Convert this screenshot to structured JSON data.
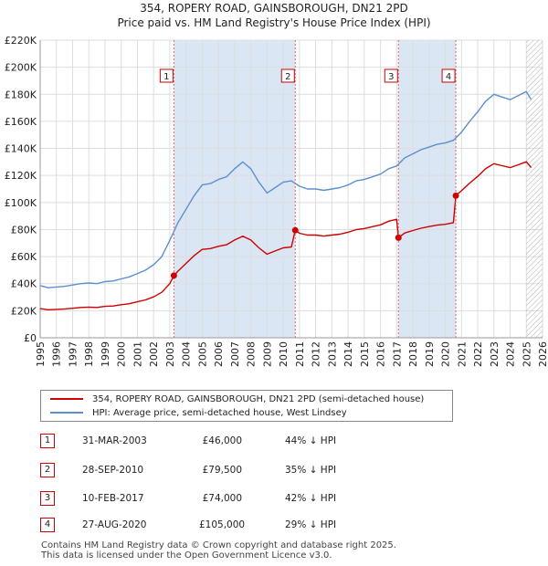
{
  "title_line1": "354, ROPERY ROAD, GAINSBOROUGH, DN21 2PD",
  "title_line2": "Price paid vs. HM Land Registry's House Price Index (HPI)",
  "colors": {
    "price": "#cc0000",
    "hpi": "#5b8fd0",
    "band": "#dbe6f4",
    "marker_line": "#e06666"
  },
  "chart_data": {
    "type": "line",
    "title": "354, ROPERY ROAD, GAINSBOROUGH, DN21 2PD — Price paid vs. HM Land Registry's House Price Index (HPI)",
    "xlabel": "",
    "ylabel": "",
    "xlim": [
      1995,
      2026
    ],
    "ylim": [
      0,
      220000
    ],
    "x_ticks": [
      1995,
      1996,
      1997,
      1998,
      1999,
      2000,
      2001,
      2002,
      2003,
      2004,
      2005,
      2006,
      2007,
      2008,
      2009,
      2010,
      2011,
      2012,
      2013,
      2014,
      2015,
      2016,
      2017,
      2018,
      2019,
      2020,
      2021,
      2022,
      2023,
      2024,
      2025,
      2026
    ],
    "y_ticks": [
      {
        "value": 0,
        "label": "£0"
      },
      {
        "value": 20000,
        "label": "£20K"
      },
      {
        "value": 40000,
        "label": "£40K"
      },
      {
        "value": 60000,
        "label": "£60K"
      },
      {
        "value": 80000,
        "label": "£80K"
      },
      {
        "value": 100000,
        "label": "£100K"
      },
      {
        "value": 120000,
        "label": "£120K"
      },
      {
        "value": 140000,
        "label": "£140K"
      },
      {
        "value": 160000,
        "label": "£160K"
      },
      {
        "value": 180000,
        "label": "£180K"
      },
      {
        "value": 200000,
        "label": "£200K"
      },
      {
        "value": 220000,
        "label": "£220K"
      }
    ],
    "grid": true,
    "series": [
      {
        "name": "HPI: Average price, semi-detached house, West Lindsey",
        "color": "#5b8fd0",
        "points": [
          [
            1995.0,
            38500
          ],
          [
            1995.5,
            37000
          ],
          [
            1996.0,
            37500
          ],
          [
            1996.5,
            38000
          ],
          [
            1997.0,
            39000
          ],
          [
            1997.5,
            40000
          ],
          [
            1998.0,
            40500
          ],
          [
            1998.5,
            40000
          ],
          [
            1999.0,
            41500
          ],
          [
            1999.5,
            42000
          ],
          [
            2000.0,
            43500
          ],
          [
            2000.5,
            45000
          ],
          [
            2001.0,
            47500
          ],
          [
            2001.5,
            50000
          ],
          [
            2002.0,
            54000
          ],
          [
            2002.5,
            60000
          ],
          [
            2003.0,
            72000
          ],
          [
            2003.5,
            85000
          ],
          [
            2004.0,
            95000
          ],
          [
            2004.5,
            105000
          ],
          [
            2005.0,
            113000
          ],
          [
            2005.5,
            114000
          ],
          [
            2006.0,
            117000
          ],
          [
            2006.5,
            119000
          ],
          [
            2007.0,
            125000
          ],
          [
            2007.5,
            130000
          ],
          [
            2008.0,
            125000
          ],
          [
            2008.5,
            115000
          ],
          [
            2009.0,
            107000
          ],
          [
            2009.5,
            111000
          ],
          [
            2010.0,
            115000
          ],
          [
            2010.5,
            116000
          ],
          [
            2011.0,
            112000
          ],
          [
            2011.5,
            110000
          ],
          [
            2012.0,
            110000
          ],
          [
            2012.5,
            109000
          ],
          [
            2013.0,
            110000
          ],
          [
            2013.5,
            111000
          ],
          [
            2014.0,
            113000
          ],
          [
            2014.5,
            116000
          ],
          [
            2015.0,
            117000
          ],
          [
            2015.5,
            119000
          ],
          [
            2016.0,
            121000
          ],
          [
            2016.5,
            125000
          ],
          [
            2017.0,
            127000
          ],
          [
            2017.5,
            133000
          ],
          [
            2018.0,
            136000
          ],
          [
            2018.5,
            139000
          ],
          [
            2019.0,
            141000
          ],
          [
            2019.5,
            143000
          ],
          [
            2020.0,
            144000
          ],
          [
            2020.5,
            146000
          ],
          [
            2021.0,
            152000
          ],
          [
            2021.5,
            160000
          ],
          [
            2022.0,
            167000
          ],
          [
            2022.5,
            175000
          ],
          [
            2023.0,
            180000
          ],
          [
            2023.5,
            178000
          ],
          [
            2024.0,
            176000
          ],
          [
            2024.5,
            179000
          ],
          [
            2025.0,
            182000
          ],
          [
            2025.3,
            176000
          ]
        ]
      },
      {
        "name": "354, ROPERY ROAD, GAINSBOROUGH, DN21 2PD (semi-detached house)",
        "color": "#cc0000",
        "points": [
          [
            1995.0,
            21500
          ],
          [
            1995.5,
            20700
          ],
          [
            1996.0,
            21000
          ],
          [
            1996.5,
            21300
          ],
          [
            1997.0,
            21800
          ],
          [
            1997.5,
            22400
          ],
          [
            1998.0,
            22700
          ],
          [
            1998.5,
            22400
          ],
          [
            1999.0,
            23200
          ],
          [
            1999.5,
            23500
          ],
          [
            2000.0,
            24400
          ],
          [
            2000.5,
            25200
          ],
          [
            2001.0,
            26600
          ],
          [
            2001.5,
            28000
          ],
          [
            2002.0,
            30200
          ],
          [
            2002.5,
            33600
          ],
          [
            2003.0,
            40000
          ],
          [
            2003.25,
            46000
          ],
          [
            2003.5,
            49200
          ],
          [
            2004.0,
            55000
          ],
          [
            2004.5,
            60700
          ],
          [
            2005.0,
            65300
          ],
          [
            2005.5,
            65900
          ],
          [
            2006.0,
            67600
          ],
          [
            2006.5,
            68800
          ],
          [
            2007.0,
            72300
          ],
          [
            2007.5,
            75100
          ],
          [
            2008.0,
            72300
          ],
          [
            2008.5,
            66500
          ],
          [
            2009.0,
            61800
          ],
          [
            2009.5,
            64200
          ],
          [
            2010.0,
            66500
          ],
          [
            2010.5,
            67100
          ],
          [
            2010.74,
            79500
          ],
          [
            2011.0,
            77300
          ],
          [
            2011.5,
            75900
          ],
          [
            2012.0,
            75900
          ],
          [
            2012.5,
            75200
          ],
          [
            2013.0,
            75900
          ],
          [
            2013.5,
            76600
          ],
          [
            2014.0,
            78000
          ],
          [
            2014.5,
            80000
          ],
          [
            2015.0,
            80700
          ],
          [
            2015.5,
            82100
          ],
          [
            2016.0,
            83500
          ],
          [
            2016.5,
            86200
          ],
          [
            2017.0,
            87600
          ],
          [
            2017.11,
            74000
          ],
          [
            2017.5,
            77500
          ],
          [
            2018.0,
            79300
          ],
          [
            2018.5,
            81000
          ],
          [
            2019.0,
            82200
          ],
          [
            2019.5,
            83300
          ],
          [
            2020.0,
            83900
          ],
          [
            2020.5,
            85100
          ],
          [
            2020.65,
            105000
          ],
          [
            2021.0,
            108700
          ],
          [
            2021.5,
            114300
          ],
          [
            2022.0,
            119300
          ],
          [
            2022.5,
            125100
          ],
          [
            2023.0,
            128700
          ],
          [
            2023.5,
            127200
          ],
          [
            2024.0,
            125800
          ],
          [
            2024.5,
            127900
          ],
          [
            2025.0,
            130100
          ],
          [
            2025.3,
            125800
          ]
        ]
      }
    ],
    "sales": [
      {
        "num": "1",
        "x": 2003.25,
        "price": 46000
      },
      {
        "num": "2",
        "x": 2010.74,
        "price": 79500
      },
      {
        "num": "3",
        "x": 2017.11,
        "price": 74000
      },
      {
        "num": "4",
        "x": 2020.65,
        "price": 105000
      }
    ],
    "bands": [
      [
        2003.25,
        2010.74
      ],
      [
        2017.11,
        2020.65
      ]
    ],
    "hatch_from": 2025.0
  },
  "legend": {
    "price_label": "354, ROPERY ROAD, GAINSBOROUGH, DN21 2PD (semi-detached house)",
    "hpi_label": "HPI: Average price, semi-detached house, West Lindsey"
  },
  "transactions": [
    {
      "num": "1",
      "date": "31-MAR-2003",
      "price": "£46,000",
      "hpi": "44% ↓ HPI"
    },
    {
      "num": "2",
      "date": "28-SEP-2010",
      "price": "£79,500",
      "hpi": "35% ↓ HPI"
    },
    {
      "num": "3",
      "date": "10-FEB-2017",
      "price": "£74,000",
      "hpi": "42% ↓ HPI"
    },
    {
      "num": "4",
      "date": "27-AUG-2020",
      "price": "£105,000",
      "hpi": "29% ↓ HPI"
    }
  ],
  "footer": {
    "line1": "Contains HM Land Registry data © Crown copyright and database right 2025.",
    "line2": "This data is licensed under the Open Government Licence v3.0."
  }
}
